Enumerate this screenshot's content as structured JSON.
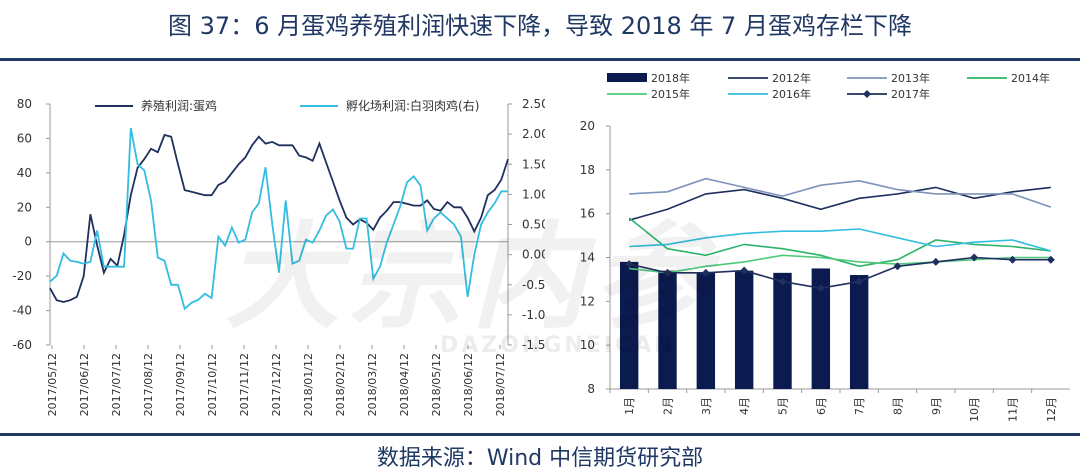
{
  "header": {
    "title": "图 37：6 月蛋鸡养殖利润快速下降，导致 2018 年 7 月蛋鸡存栏下降"
  },
  "footer": {
    "source": "数据来源：Wind 中信期货研究部"
  },
  "watermark": {
    "text": "大宗内参",
    "sub": "DAZONGNEICAN"
  },
  "colors": {
    "dark_navy": "#1f2f5e",
    "light_blue": "#33bde0",
    "navy_bar": "#0b1a4f",
    "mid_blue": "#7e92bb",
    "green": "#2eb46a",
    "light_green": "#4fc87c"
  },
  "chart_data": [
    {
      "type": "line",
      "title": "",
      "y_left": {
        "ylim": [
          -60,
          80
        ],
        "ticks": [
          -60,
          -40,
          -20,
          0,
          20,
          40,
          60,
          80
        ]
      },
      "y_right": {
        "ylim": [
          -1.5,
          2.5
        ],
        "ticks": [
          "-1.50",
          "-1.00",
          "-0.50",
          "0.00",
          "0.50",
          "1.00",
          "1.50",
          "2.00",
          "2.50"
        ]
      },
      "x_tick_labels": [
        "2017/05/12",
        "2017/06/12",
        "2017/07/12",
        "2017/08/12",
        "2017/09/12",
        "2017/10/12",
        "2017/11/12",
        "2017/12/12",
        "2018/01/12",
        "2018/02/12",
        "2018/03/12",
        "2018/04/12",
        "2018/05/12",
        "2018/06/12",
        "2018/07/12"
      ],
      "legend": [
        "养殖利润:蛋鸡",
        "孵化场利润:白羽肉鸡(右)"
      ],
      "legend_position": "top",
      "series": [
        {
          "name": "养殖利润:蛋鸡",
          "axis": "left",
          "color": "#1f2f5e",
          "values": [
            -27,
            -34,
            -35,
            -34,
            -32,
            -20,
            16,
            -2,
            -18,
            -10,
            -14,
            4,
            27,
            43,
            48,
            54,
            52,
            62,
            61,
            45,
            30,
            29,
            28,
            27,
            27,
            33,
            35,
            40,
            45,
            49,
            56,
            61,
            57,
            58,
            56,
            56,
            56,
            50,
            49,
            47,
            57,
            46,
            35,
            24,
            14,
            10,
            13,
            11,
            7,
            14,
            18,
            23,
            23,
            22,
            21,
            21,
            24,
            19,
            18,
            23,
            20,
            20,
            14,
            6,
            14,
            27,
            30,
            36,
            48
          ]
        },
        {
          "name": "孵化场利润:白羽肉鸡(右)",
          "axis": "right",
          "color": "#33bde0",
          "values": [
            -0.45,
            -0.35,
            0.02,
            -0.1,
            -0.12,
            -0.15,
            -0.12,
            0.4,
            -0.2,
            -0.2,
            -0.2,
            -0.2,
            2.1,
            1.5,
            1.4,
            0.9,
            -0.05,
            -0.1,
            -0.5,
            -0.5,
            -0.9,
            -0.8,
            -0.75,
            -0.65,
            -0.72,
            0.3,
            0.15,
            0.45,
            0.2,
            0.25,
            0.7,
            0.85,
            1.45,
            0.5,
            -0.3,
            0.9,
            -0.15,
            -0.1,
            0.25,
            0.2,
            0.4,
            0.65,
            0.75,
            0.55,
            0.1,
            0.1,
            0.6,
            0.6,
            -0.4,
            -0.2,
            0.2,
            0.5,
            0.8,
            1.2,
            1.3,
            1.15,
            0.4,
            0.6,
            0.7,
            0.6,
            0.5,
            0.3,
            -0.7,
            0.0,
            0.5,
            0.7,
            0.85,
            1.05,
            1.05
          ]
        }
      ]
    },
    {
      "type": "bar",
      "title": "",
      "categories": [
        "1月",
        "2月",
        "3月",
        "4月",
        "5月",
        "6月",
        "7月",
        "8月",
        "9月",
        "10月",
        "11月",
        "12月"
      ],
      "ylim": [
        8,
        20
      ],
      "y_ticks": [
        8,
        10,
        12,
        14,
        16,
        18,
        20
      ],
      "legend_position": "top",
      "series": [
        {
          "name": "2018年",
          "kind": "bar",
          "color": "#0b1a4f",
          "values": [
            13.8,
            13.4,
            13.3,
            13.4,
            13.3,
            13.5,
            13.2,
            null,
            null,
            null,
            null,
            null
          ]
        },
        {
          "name": "2012年",
          "kind": "line",
          "color": "#1f2f5e",
          "values": [
            15.7,
            16.2,
            16.9,
            17.1,
            16.7,
            16.2,
            16.7,
            16.9,
            17.2,
            16.7,
            17.0,
            17.2
          ]
        },
        {
          "name": "2013年",
          "kind": "line",
          "color": "#7e92bb",
          "values": [
            16.9,
            17.0,
            17.6,
            17.2,
            16.8,
            17.3,
            17.5,
            17.1,
            16.9,
            16.9,
            16.9,
            16.3
          ]
        },
        {
          "name": "2014年",
          "kind": "line",
          "color": "#2eb46a",
          "values": [
            15.8,
            14.4,
            14.1,
            14.6,
            14.4,
            14.1,
            13.6,
            13.9,
            14.8,
            14.6,
            14.5,
            14.3
          ]
        },
        {
          "name": "2015年",
          "kind": "line",
          "color": "#4fc87c",
          "values": [
            13.5,
            13.3,
            13.6,
            13.8,
            14.1,
            14.0,
            13.8,
            13.7,
            13.8,
            13.9,
            14.0,
            14.0
          ]
        },
        {
          "name": "2016年",
          "kind": "line",
          "color": "#33bde0",
          "values": [
            14.5,
            14.6,
            14.9,
            15.1,
            15.2,
            15.2,
            15.3,
            14.9,
            14.5,
            14.7,
            14.8,
            14.3
          ]
        },
        {
          "name": "2017年",
          "kind": "line-marker",
          "color": "#1f2f5e",
          "values": [
            13.7,
            13.3,
            13.3,
            13.4,
            12.9,
            12.6,
            12.9,
            13.6,
            13.8,
            14.0,
            13.9,
            13.9
          ]
        }
      ]
    }
  ]
}
